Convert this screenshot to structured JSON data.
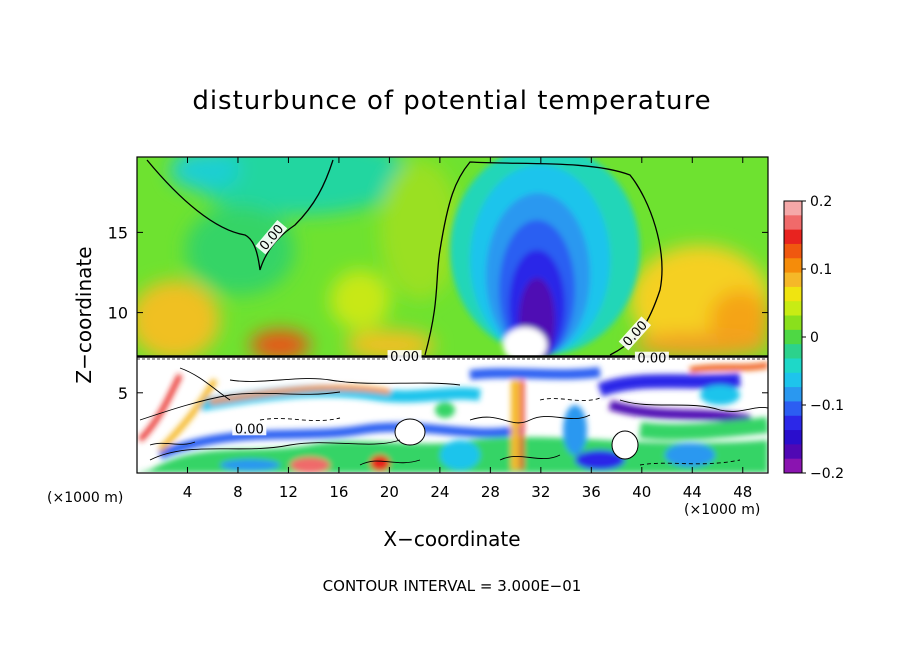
{
  "chart_data": {
    "type": "heatmap",
    "title": "disturbunce of potential temperature",
    "xlabel": "X−coordinate",
    "ylabel": "Z−coordinate",
    "x_unit_left": "(×1000 m)",
    "x_unit_right": "(×1000 m)",
    "x_ticks": [
      "4",
      "8",
      "12",
      "16",
      "20",
      "24",
      "28",
      "32",
      "36",
      "40",
      "44",
      "48"
    ],
    "y_ticks": [
      "5",
      "10",
      "15"
    ],
    "xlim": [
      0,
      50
    ],
    "ylim": [
      0,
      19.7
    ],
    "colorbar": {
      "vmin": -0.2,
      "vmax": 0.2,
      "ticks": [
        "0.2",
        "0.1",
        "0",
        "−0.1",
        "−0.2"
      ],
      "colors": [
        "#f5a8a8",
        "#f06a6a",
        "#e8231f",
        "#f0580f",
        "#f58c0a",
        "#f5b828",
        "#f0e410",
        "#c8ec14",
        "#8ae01c",
        "#4ed844",
        "#2cd28c",
        "#1ed8c8",
        "#1ec4ec",
        "#2a98f0",
        "#2c5ef2",
        "#2c28e8",
        "#2a0ecc",
        "#5008b4",
        "#8a14b0"
      ]
    },
    "contour_labels": [
      {
        "text": "0.00",
        "x": 10.8,
        "y": 14.6,
        "rotate": -50
      },
      {
        "text": "0.00",
        "x": 39.6,
        "y": 8.6,
        "rotate": -48
      },
      {
        "text": "0.00",
        "x": 21.2,
        "y": 7.1,
        "rotate": 0
      },
      {
        "text": "0.00",
        "x": 40.8,
        "y": 7.0,
        "rotate": 0
      },
      {
        "text": "0.00",
        "x": 8.9,
        "y": 2.6,
        "rotate": 0
      }
    ],
    "contour_interval_text": "CONTOUR INTERVAL = 3.000E−01"
  }
}
